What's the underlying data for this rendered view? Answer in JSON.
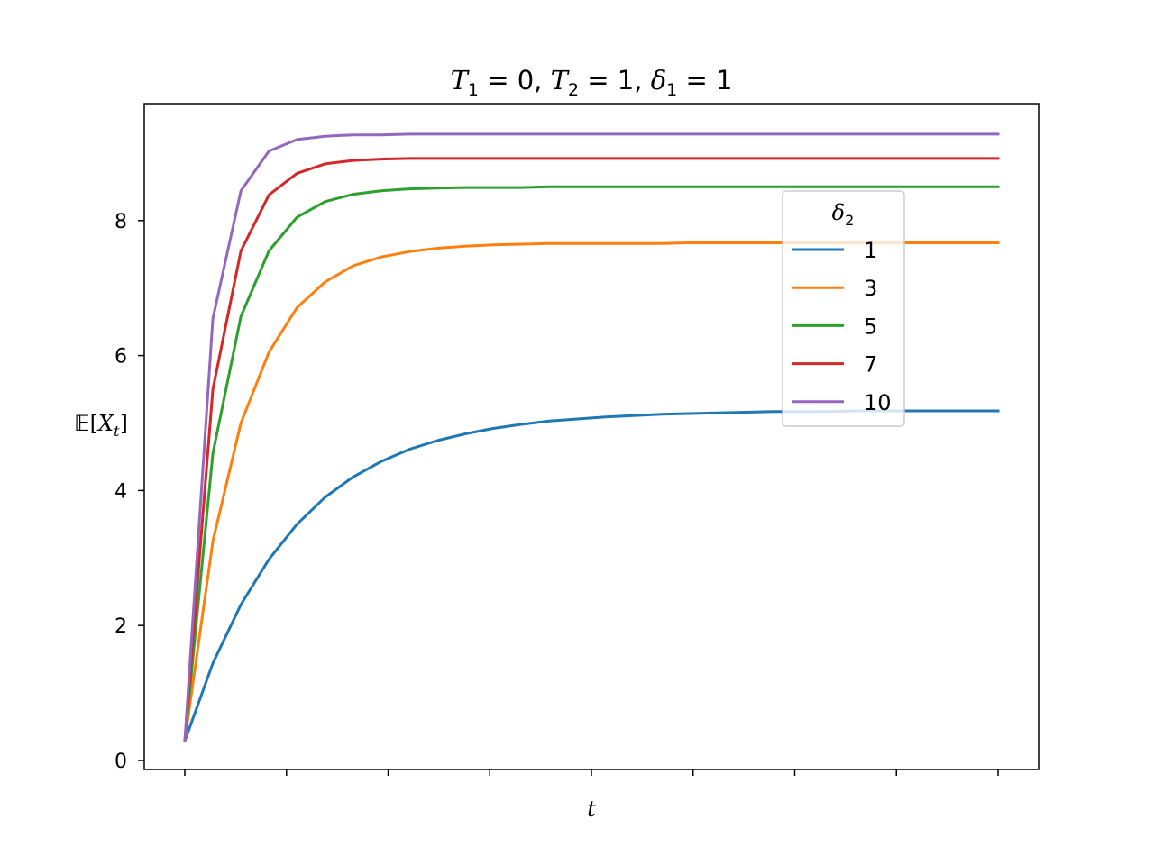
{
  "chart_data": {
    "type": "line",
    "title": "T₁ = 0, T₂ = 1, δ₁ = 1",
    "title_parts": {
      "T1": "T",
      "T1_sub": "1",
      "T1_val": " = 0, ",
      "T2": "T",
      "T2_sub": "2",
      "T2_val": " = 1, ",
      "d1": "δ",
      "d1_sub": "1",
      "d1_val": " = 1"
    },
    "xlabel": "t",
    "ylabel": "𝔼[Xₜ]",
    "ylabel_parts": {
      "E": "𝔼",
      "open": "[",
      "X": "X",
      "sub": "t",
      "close": "]"
    },
    "x_tick_labels": [
      "",
      "",
      "",
      "",
      "",
      "",
      "",
      "",
      ""
    ],
    "ylim": [
      -0.15,
      9.75
    ],
    "y_ticks": [
      0,
      2,
      4,
      6,
      8
    ],
    "grid": false,
    "legend": {
      "title": "δ₂",
      "title_main": "δ",
      "title_sub": "2",
      "placement": "center-right"
    },
    "x": [
      0,
      1,
      2,
      3,
      4,
      5,
      6,
      7,
      8,
      9,
      10,
      11,
      12,
      13,
      14,
      15,
      16,
      17,
      18,
      19,
      20,
      21,
      22,
      23,
      24,
      25,
      26,
      27,
      28,
      29
    ],
    "series": [
      {
        "name": "1",
        "color": "#1f77b4",
        "values": [
          0.29,
          1.44,
          2.31,
          2.98,
          3.5,
          3.9,
          4.2,
          4.43,
          4.61,
          4.74,
          4.84,
          4.92,
          4.98,
          5.03,
          5.06,
          5.09,
          5.11,
          5.13,
          5.14,
          5.15,
          5.16,
          5.17,
          5.17,
          5.17,
          5.18,
          5.18,
          5.18,
          5.18,
          5.18,
          5.18
        ]
      },
      {
        "name": "3",
        "color": "#ff7f0e",
        "values": [
          0.29,
          3.25,
          5.0,
          6.05,
          6.71,
          7.09,
          7.33,
          7.46,
          7.54,
          7.59,
          7.62,
          7.64,
          7.65,
          7.66,
          7.66,
          7.66,
          7.66,
          7.66,
          7.67,
          7.67,
          7.67,
          7.67,
          7.67,
          7.67,
          7.67,
          7.67,
          7.67,
          7.67,
          7.67,
          7.67
        ]
      },
      {
        "name": "5",
        "color": "#2ca02c",
        "values": [
          0.29,
          4.55,
          6.58,
          7.55,
          8.05,
          8.28,
          8.39,
          8.44,
          8.47,
          8.48,
          8.49,
          8.49,
          8.49,
          8.5,
          8.5,
          8.5,
          8.5,
          8.5,
          8.5,
          8.5,
          8.5,
          8.5,
          8.5,
          8.5,
          8.5,
          8.5,
          8.5,
          8.5,
          8.5,
          8.5
        ]
      },
      {
        "name": "7",
        "color": "#d62728",
        "values": [
          0.29,
          5.5,
          7.55,
          8.38,
          8.7,
          8.84,
          8.89,
          8.91,
          8.92,
          8.92,
          8.92,
          8.92,
          8.92,
          8.92,
          8.92,
          8.92,
          8.92,
          8.92,
          8.92,
          8.92,
          8.92,
          8.92,
          8.92,
          8.92,
          8.92,
          8.92,
          8.92,
          8.92,
          8.92,
          8.92
        ]
      },
      {
        "name": "10",
        "color": "#9467bd",
        "values": [
          0.29,
          6.55,
          8.44,
          9.03,
          9.2,
          9.25,
          9.27,
          9.27,
          9.28,
          9.28,
          9.28,
          9.28,
          9.28,
          9.28,
          9.28,
          9.28,
          9.28,
          9.28,
          9.28,
          9.28,
          9.28,
          9.28,
          9.28,
          9.28,
          9.28,
          9.28,
          9.28,
          9.28,
          9.28,
          9.28
        ]
      }
    ]
  }
}
